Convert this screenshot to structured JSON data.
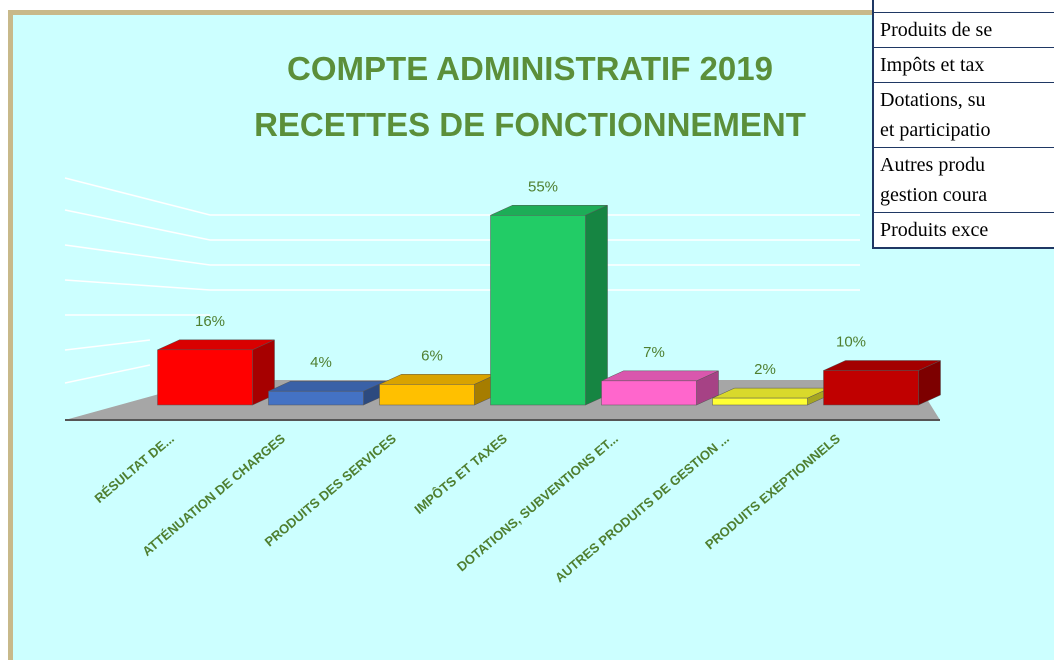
{
  "chart_data": {
    "type": "bar3d",
    "title": [
      "COMPTE ADMINISTRATIF 2019",
      "RECETTES DE FONCTIONNEMENT"
    ],
    "categories": [
      "RÉSULTAT DE...",
      "ATTÉNUATION DE CHARGES",
      "PRODUITS DES SERVICES",
      "IMPÔTS ET TAXES",
      "DOTATIONS, SUBVENTIONS ET...",
      "AUTRES PRODUITS DE GESTION ...",
      "PRODUITS EXEPTIONNELS"
    ],
    "values": [
      16,
      4,
      6,
      55,
      7,
      2,
      10
    ],
    "value_labels": [
      "16%",
      "4%",
      "6%",
      "55%",
      "7%",
      "2%",
      "10%"
    ],
    "colors": [
      "#ff0000",
      "#4472c4",
      "#ffc000",
      "#22cc66",
      "#ff66cc",
      "#ffff33",
      "#c00000"
    ]
  },
  "table": {
    "rows": [
      [
        "Produits de se"
      ],
      [
        "Impôts et tax"
      ],
      [
        "Dotations, su",
        "et participatio"
      ],
      [
        "Autres produ",
        "gestion coura"
      ],
      [
        "Produits exce"
      ]
    ]
  }
}
